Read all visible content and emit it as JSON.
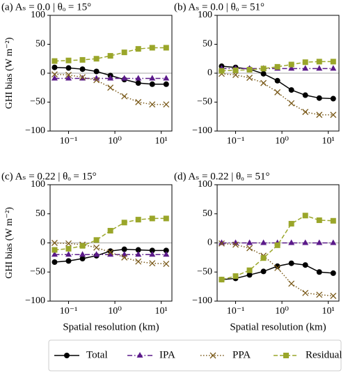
{
  "chart_data": [
    {
      "type": "line",
      "title": "(a) Aₛ = 0.0 | θₒ = 15°",
      "ylabel": "GHI bias (W m⁻²)",
      "x": [
        0.05,
        0.1,
        0.2,
        0.4,
        0.8,
        1.6,
        3.2,
        6.4,
        12.8
      ],
      "xscale": "log",
      "xlim": [
        0.04,
        17
      ],
      "ylim": [
        -100,
        100
      ],
      "xticks": [
        {
          "value": 0.1,
          "label": "10⁻¹"
        },
        {
          "value": 1,
          "label": "10⁰"
        },
        {
          "value": 10,
          "label": "10¹"
        }
      ],
      "yticks": [
        {
          "value": -100,
          "label": "−100"
        },
        {
          "value": -50,
          "label": "−50"
        },
        0,
        50,
        100
      ],
      "legend": "bottom",
      "series": [
        {
          "name": "Total",
          "color": "#000000",
          "marker": "circle",
          "dash": "solid",
          "values": [
            10,
            9,
            7,
            3,
            -4,
            -11,
            -17,
            -19,
            -19
          ]
        },
        {
          "name": "IPA",
          "color": "#5b1a8a",
          "marker": "triangle",
          "dash": "dashdot",
          "values": [
            -9,
            -9,
            -9,
            -9,
            -9,
            -9,
            -9,
            -9,
            -9
          ]
        },
        {
          "name": "PPA",
          "color": "#7a5a1a",
          "marker": "x",
          "dash": "dotted",
          "values": [
            -2,
            -3,
            -7,
            -12,
            -25,
            -40,
            -50,
            -54,
            -54
          ]
        },
        {
          "name": "Residual",
          "color": "#9aa62a",
          "marker": "square",
          "dash": "dashed",
          "values": [
            21,
            22,
            23,
            25,
            30,
            36,
            42,
            44,
            44
          ]
        }
      ]
    },
    {
      "type": "line",
      "title": "(b) Aₛ = 0.0 | θₒ = 51°",
      "x": [
        0.05,
        0.1,
        0.2,
        0.4,
        0.8,
        1.6,
        3.2,
        6.4,
        12.8
      ],
      "xscale": "log",
      "xlim": [
        0.04,
        17
      ],
      "ylim": [
        -100,
        100
      ],
      "xticks": [
        {
          "value": 0.1,
          "label": "10⁻¹"
        },
        {
          "value": 1,
          "label": "10⁰"
        },
        {
          "value": 10,
          "label": "10¹"
        }
      ],
      "yticks": [
        {
          "value": -100,
          "label": "−100"
        },
        {
          "value": -50,
          "label": "−50"
        },
        0,
        50,
        100
      ],
      "series": [
        {
          "color": "#000000",
          "marker": "circle",
          "dash": "solid",
          "values": [
            12,
            10,
            7,
            -1,
            -13,
            -29,
            -38,
            -43,
            -44
          ]
        },
        {
          "color": "#5b1a8a",
          "marker": "triangle",
          "dash": "dashdot",
          "values": [
            8,
            8,
            8,
            8,
            8,
            8,
            8,
            8,
            8
          ]
        },
        {
          "color": "#7a5a1a",
          "marker": "x",
          "dash": "dotted",
          "values": [
            -1,
            -3,
            -8,
            -17,
            -33,
            -52,
            -67,
            -72,
            -72
          ]
        },
        {
          "color": "#9aa62a",
          "marker": "square",
          "dash": "dashed",
          "values": [
            4,
            5,
            6,
            8,
            11,
            15,
            19,
            20,
            20
          ]
        }
      ]
    },
    {
      "type": "line",
      "title": "(c) Aₛ = 0.22 | θₒ = 15°",
      "ylabel": "GHI bias (W m⁻²)",
      "xlabel": "Spatial resolution (km)",
      "x": [
        0.05,
        0.1,
        0.2,
        0.4,
        0.8,
        1.6,
        3.2,
        6.4,
        12.8
      ],
      "xscale": "log",
      "xlim": [
        0.04,
        17
      ],
      "ylim": [
        -100,
        100
      ],
      "xticks": [
        {
          "value": 0.1,
          "label": "10⁻¹"
        },
        {
          "value": 1,
          "label": "10⁰"
        },
        {
          "value": 10,
          "label": "10¹"
        }
      ],
      "yticks": [
        {
          "value": -100,
          "label": "−100"
        },
        {
          "value": -50,
          "label": "−50"
        },
        0,
        50,
        100
      ],
      "series": [
        {
          "color": "#000000",
          "marker": "circle",
          "dash": "solid",
          "values": [
            -33,
            -31,
            -27,
            -22,
            -14,
            -11,
            -12,
            -13,
            -13
          ]
        },
        {
          "color": "#5b1a8a",
          "marker": "triangle",
          "dash": "dashdot",
          "values": [
            -20,
            -20,
            -20,
            -20,
            -20,
            -20,
            -20,
            -20,
            -20
          ]
        },
        {
          "color": "#7a5a1a",
          "marker": "x",
          "dash": "dotted",
          "values": [
            0,
            -1,
            -3,
            -8,
            -16,
            -25,
            -32,
            -35,
            -36
          ]
        },
        {
          "color": "#9aa62a",
          "marker": "square",
          "dash": "dashed",
          "values": [
            -12,
            -10,
            -5,
            5,
            21,
            35,
            40,
            42,
            42
          ]
        }
      ]
    },
    {
      "type": "line",
      "title": "(d) Aₛ = 0.22 | θₒ = 51°",
      "xlabel": "Spatial resolution (km)",
      "x": [
        0.05,
        0.1,
        0.2,
        0.4,
        0.8,
        1.6,
        3.2,
        6.4,
        12.8
      ],
      "xscale": "log",
      "xlim": [
        0.04,
        17
      ],
      "ylim": [
        -100,
        100
      ],
      "xticks": [
        {
          "value": 0.1,
          "label": "10⁻¹"
        },
        {
          "value": 1,
          "label": "10⁰"
        },
        {
          "value": 10,
          "label": "10¹"
        }
      ],
      "yticks": [
        {
          "value": -100,
          "label": "−100"
        },
        {
          "value": -50,
          "label": "−50"
        },
        0,
        50,
        100
      ],
      "series": [
        {
          "color": "#000000",
          "marker": "circle",
          "dash": "solid",
          "values": [
            -63,
            -61,
            -55,
            -49,
            -40,
            -35,
            -38,
            -50,
            -52
          ]
        },
        {
          "color": "#5b1a8a",
          "marker": "triangle",
          "dash": "dashdot",
          "values": [
            0,
            0,
            0,
            0,
            0,
            0,
            0,
            0,
            0
          ]
        },
        {
          "color": "#7a5a1a",
          "marker": "x",
          "dash": "dotted",
          "values": [
            -1,
            -3,
            -9,
            -22,
            -43,
            -70,
            -86,
            -89,
            -91
          ]
        },
        {
          "color": "#9aa62a",
          "marker": "square",
          "dash": "dashed",
          "values": [
            -63,
            -57,
            -47,
            -26,
            -4,
            33,
            47,
            39,
            38
          ]
        }
      ]
    }
  ]
}
